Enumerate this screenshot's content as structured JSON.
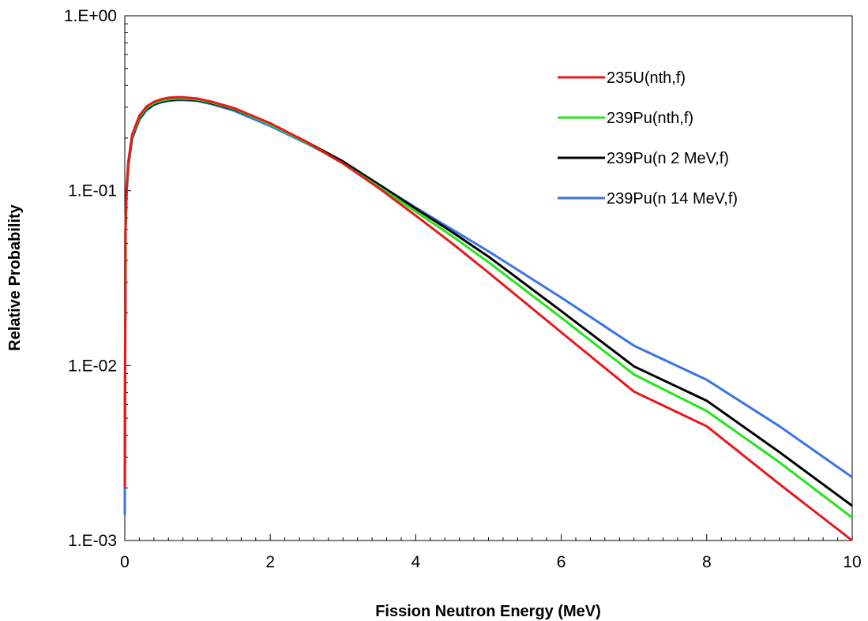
{
  "chart_data": {
    "type": "line",
    "title": "",
    "xlabel": "Fission Neutron Energy (MeV)",
    "ylabel": "Relative Probability",
    "xlim": [
      0,
      10
    ],
    "ylim": [
      0.001,
      1
    ],
    "yscale": "log",
    "grid": false,
    "legend_position": "top-right",
    "x_ticks": [
      0,
      2,
      4,
      6,
      8,
      10
    ],
    "x_tick_labels": [
      "0",
      "2",
      "4",
      "6",
      "8",
      "10"
    ],
    "y_ticks": [
      1,
      0.1,
      0.01,
      0.001
    ],
    "y_tick_labels": [
      "1.E+00",
      "1.E-01",
      "1.E-02",
      "1.E-03"
    ],
    "series": [
      {
        "name": "235U(nth,f)",
        "color": "#e8171b",
        "x": [
          0.0,
          0.01,
          0.025,
          0.05,
          0.1,
          0.2,
          0.3,
          0.4,
          0.5,
          0.6,
          0.7,
          0.8,
          1.0,
          1.2,
          1.5,
          2.0,
          2.5,
          3.0,
          3.5,
          4.0,
          4.5,
          5.0,
          6.0,
          7.0,
          8.0,
          9.0,
          10.0
        ],
        "values": [
          0.002,
          0.062,
          0.105,
          0.148,
          0.208,
          0.268,
          0.303,
          0.322,
          0.333,
          0.34,
          0.342,
          0.342,
          0.336,
          0.322,
          0.297,
          0.243,
          0.19,
          0.143,
          0.103,
          0.072,
          0.05,
          0.034,
          0.0155,
          0.0071,
          0.0045,
          0.0021,
          0.001
        ]
      },
      {
        "name": "239Pu(nth,f)",
        "color": "#22e51c",
        "x": [
          0.0,
          0.01,
          0.025,
          0.05,
          0.1,
          0.2,
          0.3,
          0.4,
          0.5,
          0.6,
          0.7,
          0.8,
          1.0,
          1.2,
          1.5,
          2.0,
          2.5,
          3.0,
          3.5,
          4.0,
          4.5,
          5.0,
          6.0,
          7.0,
          8.0,
          9.0,
          10.0
        ],
        "values": [
          0.002,
          0.06,
          0.102,
          0.145,
          0.203,
          0.262,
          0.297,
          0.316,
          0.327,
          0.333,
          0.336,
          0.336,
          0.332,
          0.319,
          0.294,
          0.239,
          0.188,
          0.143,
          0.105,
          0.076,
          0.055,
          0.039,
          0.0188,
          0.0089,
          0.0055,
          0.0028,
          0.00135
        ]
      },
      {
        "name": "239Pu(n 2 MeV,f)",
        "color": "#000000",
        "x": [
          0.0,
          0.01,
          0.025,
          0.05,
          0.1,
          0.2,
          0.3,
          0.4,
          0.5,
          0.6,
          0.7,
          0.8,
          1.0,
          1.2,
          1.5,
          2.0,
          2.5,
          3.0,
          3.5,
          4.0,
          4.5,
          5.0,
          6.0,
          7.0,
          8.0,
          9.0,
          10.0
        ],
        "values": [
          0.002,
          0.06,
          0.1,
          0.143,
          0.2,
          0.258,
          0.293,
          0.312,
          0.323,
          0.329,
          0.332,
          0.333,
          0.329,
          0.316,
          0.292,
          0.24,
          0.19,
          0.147,
          0.108,
          0.079,
          0.058,
          0.042,
          0.0205,
          0.0099,
          0.0063,
          0.0032,
          0.00158
        ]
      },
      {
        "name": "239Pu(n 14 MeV,f)",
        "color": "#3a73e8",
        "x": [
          0.0,
          0.01,
          0.025,
          0.05,
          0.1,
          0.2,
          0.3,
          0.4,
          0.5,
          0.6,
          0.7,
          0.8,
          1.0,
          1.2,
          1.5,
          2.0,
          2.5,
          3.0,
          3.5,
          4.0,
          4.5,
          5.0,
          6.0,
          7.0,
          8.0,
          9.0,
          10.0
        ],
        "values": [
          0.0014,
          0.058,
          0.098,
          0.14,
          0.197,
          0.255,
          0.289,
          0.309,
          0.32,
          0.326,
          0.329,
          0.33,
          0.326,
          0.312,
          0.287,
          0.234,
          0.186,
          0.145,
          0.108,
          0.08,
          0.06,
          0.045,
          0.0245,
          0.013,
          0.0083,
          0.0045,
          0.0023
        ]
      }
    ]
  }
}
